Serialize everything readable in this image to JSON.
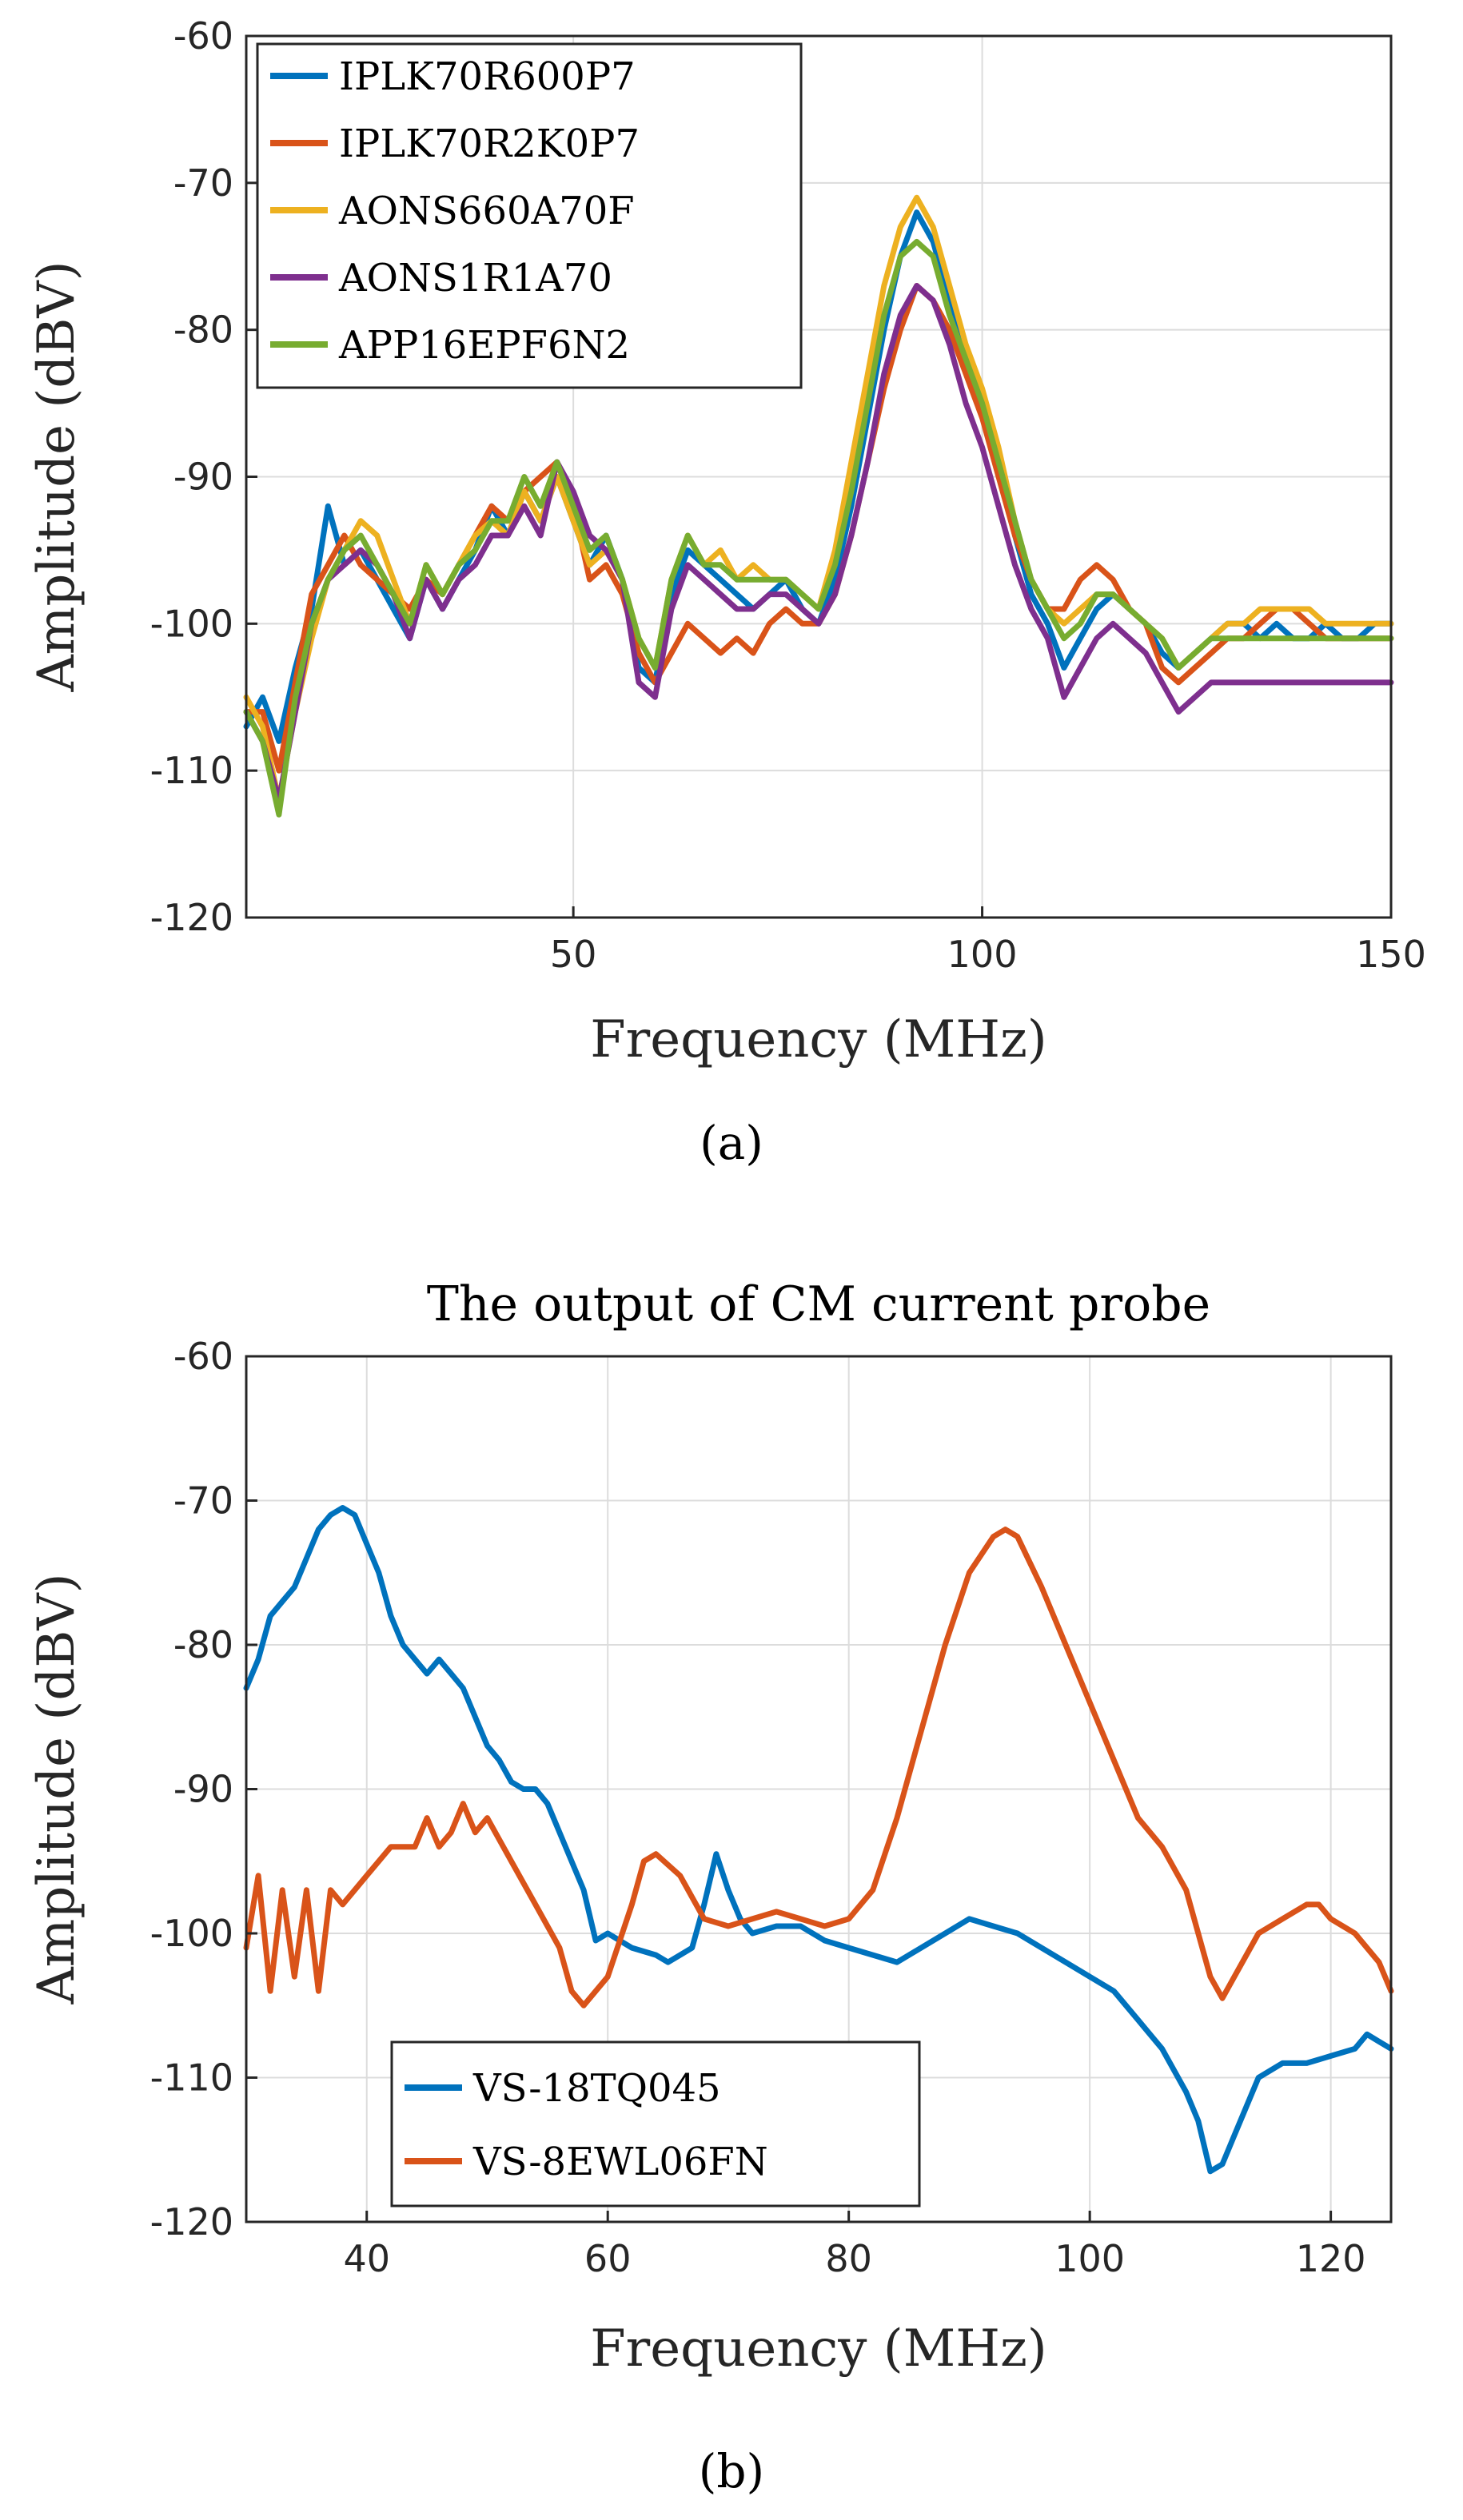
{
  "chart_data": [
    {
      "type": "line",
      "title": "",
      "xlabel": "Frequency (MHz)",
      "ylabel": "Amplitude (dBV)",
      "xlim": [
        10,
        150
      ],
      "ylim": [
        -120,
        -60
      ],
      "xticks": [
        50,
        100,
        150
      ],
      "yticks": [
        -60,
        -70,
        -80,
        -90,
        -100,
        -110,
        -120
      ],
      "grid": true,
      "legend_position": "top-left",
      "caption": "(a)",
      "series": [
        {
          "name": "IPLK70R600P7",
          "color": "#0072BD",
          "x": [
            10,
            12,
            14,
            16,
            18,
            20,
            22,
            24,
            26,
            28,
            30,
            32,
            34,
            36,
            38,
            40,
            42,
            44,
            46,
            48,
            50,
            52,
            54,
            56,
            58,
            60,
            62,
            64,
            66,
            68,
            70,
            72,
            74,
            76,
            78,
            80,
            82,
            84,
            86,
            88,
            90,
            92,
            94,
            96,
            98,
            100,
            102,
            104,
            106,
            108,
            110,
            112,
            114,
            116,
            118,
            120,
            122,
            124,
            126,
            128,
            130,
            132,
            134,
            136,
            138,
            140,
            142,
            144,
            146,
            148,
            150
          ],
          "y": [
            -107,
            -105,
            -108,
            -103,
            -99,
            -92,
            -96,
            -95,
            -97,
            -99,
            -101,
            -97,
            -99,
            -97,
            -95,
            -92,
            -94,
            -91,
            -93,
            -90,
            -93,
            -96,
            -94,
            -97,
            -103,
            -104,
            -98,
            -95,
            -96,
            -97,
            -98,
            -99,
            -98,
            -97,
            -99,
            -100,
            -97,
            -92,
            -86,
            -80,
            -75,
            -72,
            -74,
            -78,
            -82,
            -85,
            -89,
            -94,
            -98,
            -100,
            -103,
            -101,
            -99,
            -98,
            -99,
            -100,
            -102,
            -103,
            -102,
            -101,
            -100,
            -100,
            -101,
            -100,
            -101,
            -101,
            -100,
            -101,
            -101,
            -100,
            -100
          ]
        },
        {
          "name": "IPLK70R2K0P7",
          "color": "#D95319",
          "x": [
            10,
            12,
            14,
            16,
            18,
            20,
            22,
            24,
            26,
            28,
            30,
            32,
            34,
            36,
            38,
            40,
            42,
            44,
            46,
            48,
            50,
            52,
            54,
            56,
            58,
            60,
            62,
            64,
            66,
            68,
            70,
            72,
            74,
            76,
            78,
            80,
            82,
            84,
            86,
            88,
            90,
            92,
            94,
            96,
            98,
            100,
            102,
            104,
            106,
            108,
            110,
            112,
            114,
            116,
            118,
            120,
            122,
            124,
            126,
            128,
            130,
            132,
            134,
            136,
            138,
            140,
            142,
            144,
            146,
            148,
            150
          ],
          "y": [
            -106,
            -106,
            -110,
            -104,
            -98,
            -96,
            -94,
            -96,
            -97,
            -98,
            -99,
            -97,
            -98,
            -96,
            -94,
            -92,
            -93,
            -91,
            -90,
            -89,
            -92,
            -97,
            -96,
            -98,
            -102,
            -104,
            -102,
            -100,
            -101,
            -102,
            -101,
            -102,
            -100,
            -99,
            -100,
            -100,
            -98,
            -94,
            -89,
            -84,
            -80,
            -77,
            -78,
            -80,
            -83,
            -86,
            -90,
            -94,
            -97,
            -99,
            -99,
            -97,
            -96,
            -97,
            -99,
            -100,
            -103,
            -104,
            -103,
            -102,
            -101,
            -101,
            -100,
            -99,
            -99,
            -100,
            -101,
            -101,
            -101,
            -101,
            -101
          ]
        },
        {
          "name": "AONS660A70F",
          "color": "#EDB120",
          "x": [
            10,
            12,
            14,
            16,
            18,
            20,
            22,
            24,
            26,
            28,
            30,
            32,
            34,
            36,
            38,
            40,
            42,
            44,
            46,
            48,
            50,
            52,
            54,
            56,
            58,
            60,
            62,
            64,
            66,
            68,
            70,
            72,
            74,
            76,
            78,
            80,
            82,
            84,
            86,
            88,
            90,
            92,
            94,
            96,
            98,
            100,
            102,
            104,
            106,
            108,
            110,
            112,
            114,
            116,
            118,
            120,
            122,
            124,
            126,
            128,
            130,
            132,
            134,
            136,
            138,
            140,
            142,
            144,
            146,
            148,
            150
          ],
          "y": [
            -105,
            -107,
            -112,
            -106,
            -101,
            -97,
            -95,
            -93,
            -94,
            -97,
            -100,
            -96,
            -98,
            -96,
            -94,
            -93,
            -94,
            -91,
            -93,
            -90,
            -93,
            -96,
            -95,
            -97,
            -101,
            -103,
            -97,
            -94,
            -96,
            -95,
            -97,
            -96,
            -97,
            -97,
            -98,
            -99,
            -95,
            -89,
            -83,
            -77,
            -73,
            -71,
            -73,
            -77,
            -81,
            -84,
            -88,
            -93,
            -97,
            -99,
            -100,
            -99,
            -98,
            -98,
            -99,
            -100,
            -101,
            -103,
            -102,
            -101,
            -100,
            -100,
            -99,
            -99,
            -99,
            -99,
            -100,
            -100,
            -100,
            -100,
            -100
          ]
        },
        {
          "name": "AONS1R1A70",
          "color": "#7E2F8E",
          "x": [
            10,
            12,
            14,
            16,
            18,
            20,
            22,
            24,
            26,
            28,
            30,
            32,
            34,
            36,
            38,
            40,
            42,
            44,
            46,
            48,
            50,
            52,
            54,
            56,
            58,
            60,
            62,
            64,
            66,
            68,
            70,
            72,
            74,
            76,
            78,
            80,
            82,
            84,
            86,
            88,
            90,
            92,
            94,
            96,
            98,
            100,
            102,
            104,
            106,
            108,
            110,
            112,
            114,
            116,
            118,
            120,
            122,
            124,
            126,
            128,
            130,
            132,
            134,
            136,
            138,
            140,
            142,
            144,
            146,
            148,
            150
          ],
          "y": [
            -106,
            -108,
            -112,
            -106,
            -100,
            -97,
            -96,
            -95,
            -96,
            -98,
            -101,
            -97,
            -99,
            -97,
            -96,
            -94,
            -94,
            -92,
            -94,
            -89,
            -91,
            -94,
            -95,
            -97,
            -104,
            -105,
            -99,
            -96,
            -97,
            -98,
            -99,
            -99,
            -98,
            -98,
            -99,
            -100,
            -98,
            -94,
            -89,
            -83,
            -79,
            -77,
            -78,
            -81,
            -85,
            -88,
            -92,
            -96,
            -99,
            -101,
            -105,
            -103,
            -101,
            -100,
            -101,
            -102,
            -104,
            -106,
            -105,
            -104,
            -104,
            -104,
            -104,
            -104,
            -104,
            -104,
            -104,
            -104,
            -104,
            -104,
            -104
          ]
        },
        {
          "name": "APP16EPF6N2",
          "color": "#77AC30",
          "x": [
            10,
            12,
            14,
            16,
            18,
            20,
            22,
            24,
            26,
            28,
            30,
            32,
            34,
            36,
            38,
            40,
            42,
            44,
            46,
            48,
            50,
            52,
            54,
            56,
            58,
            60,
            62,
            64,
            66,
            68,
            70,
            72,
            74,
            76,
            78,
            80,
            82,
            84,
            86,
            88,
            90,
            92,
            94,
            96,
            98,
            100,
            102,
            104,
            106,
            108,
            110,
            112,
            114,
            116,
            118,
            120,
            122,
            124,
            126,
            128,
            130,
            132,
            134,
            136,
            138,
            140,
            142,
            144,
            146,
            148,
            150
          ],
          "y": [
            -106,
            -108,
            -113,
            -105,
            -100,
            -97,
            -95,
            -94,
            -96,
            -98,
            -100,
            -96,
            -98,
            -96,
            -95,
            -93,
            -93,
            -90,
            -92,
            -89,
            -92,
            -95,
            -94,
            -97,
            -101,
            -103,
            -97,
            -94,
            -96,
            -96,
            -97,
            -97,
            -97,
            -97,
            -98,
            -99,
            -96,
            -91,
            -85,
            -79,
            -75,
            -74,
            -75,
            -79,
            -82,
            -85,
            -89,
            -93,
            -97,
            -99,
            -101,
            -100,
            -98,
            -98,
            -99,
            -100,
            -101,
            -103,
            -102,
            -101,
            -101,
            -101,
            -101,
            -101,
            -101,
            -101,
            -101,
            -101,
            -101,
            -101,
            -101
          ]
        }
      ]
    },
    {
      "type": "line",
      "title": "The output of CM current probe",
      "xlabel": "Frequency (MHz)",
      "ylabel": "Amplitude (dBV)",
      "xlim": [
        30,
        125
      ],
      "ylim": [
        -120,
        -60
      ],
      "xticks": [
        40,
        60,
        80,
        100,
        120
      ],
      "yticks": [
        -60,
        -70,
        -80,
        -90,
        -100,
        -110,
        -120
      ],
      "grid": true,
      "legend_position": "bottom-left",
      "caption": "(b)",
      "series": [
        {
          "name": "VS-18TQ045",
          "color": "#0072BD",
          "x": [
            30,
            31,
            32,
            33,
            34,
            35,
            36,
            37,
            38,
            39,
            40,
            41,
            42,
            43,
            44,
            45,
            46,
            47,
            48,
            49,
            50,
            51,
            52,
            53,
            54,
            55,
            56,
            57,
            58,
            59,
            60,
            62,
            64,
            65,
            66,
            67,
            68,
            69,
            70,
            71,
            72,
            74,
            76,
            78,
            80,
            82,
            84,
            86,
            88,
            90,
            92,
            94,
            96,
            98,
            100,
            102,
            104,
            106,
            108,
            109,
            110,
            111,
            112,
            113,
            114,
            116,
            118,
            120,
            122,
            123,
            124,
            125
          ],
          "y": [
            -83,
            -81,
            -78,
            -77,
            -76,
            -74,
            -72,
            -71,
            -70.5,
            -71,
            -73,
            -75,
            -78,
            -80,
            -81,
            -82,
            -81,
            -82,
            -83,
            -85,
            -87,
            -88,
            -89.5,
            -90,
            -90,
            -91,
            -93,
            -95,
            -97,
            -100.5,
            -100,
            -101,
            -101.5,
            -102,
            -101.5,
            -101,
            -98,
            -94.5,
            -97,
            -99,
            -100,
            -99.5,
            -99.5,
            -100.5,
            -101,
            -101.5,
            -102,
            -101,
            -100,
            -99,
            -99.5,
            -100,
            -101,
            -102,
            -103,
            -104,
            -106,
            -108,
            -111,
            -113,
            -116.5,
            -116,
            -114,
            -112,
            -110,
            -109,
            -109,
            -108.5,
            -108,
            -107,
            -107.5,
            -108
          ]
        },
        {
          "name": "VS-8EWL06FN",
          "color": "#D95319",
          "x": [
            30,
            31,
            32,
            33,
            34,
            35,
            36,
            37,
            38,
            40,
            42,
            44,
            45,
            46,
            47,
            48,
            49,
            50,
            52,
            54,
            56,
            57,
            58,
            60,
            62,
            63,
            64,
            66,
            68,
            70,
            72,
            74,
            76,
            78,
            80,
            82,
            84,
            86,
            88,
            90,
            92,
            93,
            94,
            96,
            98,
            100,
            102,
            104,
            106,
            108,
            110,
            111,
            112,
            114,
            116,
            118,
            119,
            120,
            122,
            124,
            125
          ],
          "y": [
            -101,
            -96,
            -104,
            -97,
            -103,
            -97,
            -104,
            -97,
            -98,
            -96,
            -94,
            -94,
            -92,
            -94,
            -93,
            -91,
            -93,
            -92,
            -95,
            -98,
            -101,
            -104,
            -105,
            -103,
            -98,
            -95,
            -94.5,
            -96,
            -99,
            -99.5,
            -99,
            -98.5,
            -99,
            -99.5,
            -99,
            -97,
            -92,
            -86,
            -80,
            -75,
            -72.5,
            -72,
            -72.5,
            -76,
            -80,
            -84,
            -88,
            -92,
            -94,
            -97,
            -103,
            -104.5,
            -103,
            -100,
            -99,
            -98,
            -98,
            -99,
            -100,
            -102,
            -104
          ]
        }
      ]
    }
  ]
}
